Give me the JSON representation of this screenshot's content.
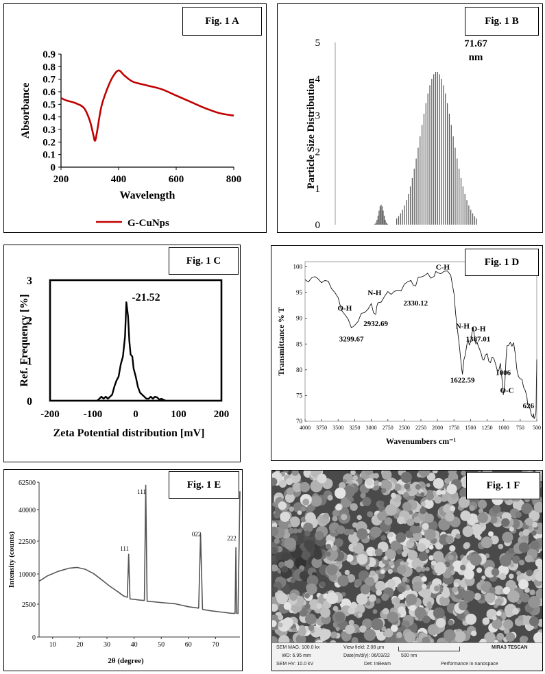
{
  "panels": {
    "A": {
      "label": "Fig. 1 A"
    },
    "B": {
      "label": "Fig. 1 B"
    },
    "C": {
      "label": "Fig. 1 C"
    },
    "D": {
      "label": "Fig. 1 D"
    },
    "E": {
      "label": "Fig. 1 E"
    },
    "F": {
      "label": "Fig. 1 F"
    }
  },
  "chart_data": [
    {
      "panel": "A",
      "type": "line",
      "xlabel": "Wavelength",
      "ylabel": "Absorbance",
      "xlim": [
        200,
        800
      ],
      "ylim": [
        0,
        0.9
      ],
      "xticks": [
        200,
        400,
        600,
        800
      ],
      "yticks": [
        0,
        0.1,
        0.2,
        0.3,
        0.4,
        0.5,
        0.6,
        0.7,
        0.8,
        0.9
      ],
      "ytick_labels": [
        "0",
        "0.1",
        "0.2",
        "0.3",
        "0.4",
        "0.5",
        "0.6",
        "0.7",
        "0.8",
        "0.9"
      ],
      "legend_position": "bottom",
      "series": [
        {
          "name": "G-CuNps",
          "color": "#c00000",
          "x": [
            200,
            220,
            250,
            280,
            300,
            312,
            318,
            325,
            340,
            360,
            380,
            400,
            420,
            450,
            500,
            550,
            600,
            650,
            700,
            750,
            800
          ],
          "y": [
            0.55,
            0.53,
            0.51,
            0.47,
            0.37,
            0.26,
            0.21,
            0.28,
            0.48,
            0.62,
            0.72,
            0.77,
            0.73,
            0.68,
            0.65,
            0.62,
            0.57,
            0.52,
            0.47,
            0.43,
            0.41
          ]
        }
      ]
    },
    {
      "panel": "B",
      "type": "bar",
      "ylabel": "Particle Size Distribution",
      "ylim": [
        0,
        5
      ],
      "yticks": [
        0,
        1,
        2,
        3,
        4,
        5
      ],
      "annotation": {
        "value": "71.67",
        "unit": "nm"
      },
      "peaks": [
        {
          "center": 0.31,
          "height": 0.55,
          "halfwidth": 0.042,
          "bars": 13
        },
        {
          "center": 0.685,
          "height": 4.2,
          "halfwidth": 0.27,
          "bars": 42
        }
      ],
      "bar_color": "#555555"
    },
    {
      "panel": "C",
      "type": "line",
      "xlabel": "Zeta Potential distribution [mV]",
      "ylabel": "Ref. Frequency [%]",
      "xlim": [
        -200,
        200
      ],
      "ylim": [
        0,
        3
      ],
      "xticks": [
        -200,
        -100,
        0,
        100,
        200
      ],
      "yticks": [
        0,
        1,
        2,
        3
      ],
      "annotation": "-21.52",
      "series": [
        {
          "x": [
            -90,
            -85,
            -80,
            -75,
            -70,
            -65,
            -60,
            -55,
            -50,
            -45,
            -40,
            -35,
            -30,
            -25,
            -22,
            -18,
            -15,
            -12,
            -8,
            -5,
            0,
            5,
            10,
            15,
            20,
            25,
            30,
            35,
            40,
            45,
            50,
            55,
            60,
            65,
            70
          ],
          "y": [
            0,
            0.05,
            0.1,
            0.05,
            0.1,
            0.05,
            0.1,
            0.15,
            0.35,
            0.5,
            0.6,
            0.9,
            1.1,
            1.6,
            2.45,
            2.1,
            1.5,
            1.15,
            1.1,
            0.8,
            0.6,
            0.35,
            0.2,
            0.15,
            0.1,
            0.05,
            0.05,
            0.1,
            0.05,
            0.1,
            0.08,
            0.03,
            0.05,
            0.02,
            0
          ]
        }
      ]
    },
    {
      "panel": "D",
      "type": "line",
      "xlabel": "Wavenumbers cm⁻¹",
      "ylabel": "Transmittance % T",
      "xlim": [
        4000,
        500
      ],
      "ylim": [
        70,
        101
      ],
      "xticks": [
        4000,
        3750,
        3500,
        3250,
        3000,
        2750,
        2500,
        2250,
        2000,
        1750,
        1500,
        1250,
        1000,
        750,
        500
      ],
      "yticks": [
        70,
        75,
        80,
        85,
        90,
        95,
        100
      ],
      "annotations": [
        {
          "text": "O-H",
          "x": 3400,
          "y": 91.5
        },
        {
          "text": "N-H",
          "x": 2950,
          "y": 94.5
        },
        {
          "text": "C-H",
          "x": 1920,
          "y": 99.5
        },
        {
          "text": "3299.67",
          "x": 3299.67,
          "y": 85.5
        },
        {
          "text": "2932.69",
          "x": 2932.69,
          "y": 88.5
        },
        {
          "text": "2330.12",
          "x": 2330.12,
          "y": 92.5
        },
        {
          "text": "N-H",
          "x": 1620,
          "y": 88
        },
        {
          "text": "O-H",
          "x": 1380,
          "y": 87.5
        },
        {
          "text": "1387.01",
          "x": 1387.01,
          "y": 85.5
        },
        {
          "text": "1622.59",
          "x": 1622.59,
          "y": 77.5
        },
        {
          "text": "1006",
          "x": 1006,
          "y": 79
        },
        {
          "text": "O-C",
          "x": 950,
          "y": 75.5
        },
        {
          "text": "626",
          "x": 626,
          "y": 72.5
        }
      ],
      "series": [
        {
          "x": [
            4000,
            3900,
            3800,
            3700,
            3600,
            3500,
            3400,
            3300,
            3200,
            3100,
            3000,
            2932,
            2900,
            2800,
            2700,
            2600,
            2500,
            2400,
            2330,
            2250,
            2150,
            2050,
            2000,
            1900,
            1800,
            1750,
            1700,
            1650,
            1622,
            1580,
            1540,
            1500,
            1460,
            1420,
            1387,
            1340,
            1300,
            1250,
            1200,
            1150,
            1100,
            1050,
            1006,
            980,
            950,
            900,
            850,
            800,
            750,
            700,
            650,
            626,
            600,
            560,
            540,
            520,
            510,
            505,
            500
          ],
          "y": [
            97.5,
            98,
            97.5,
            97,
            96,
            94,
            90.5,
            88.5,
            89.5,
            91,
            92.5,
            91,
            93,
            94,
            95,
            95.5,
            96.5,
            97,
            96.5,
            98,
            98.5,
            98.5,
            99,
            99,
            98,
            95,
            88,
            82,
            79.5,
            83,
            86,
            85,
            88.5,
            85,
            84.5,
            83.5,
            82,
            83,
            81,
            82.5,
            80,
            81,
            75.5,
            78,
            84.5,
            85,
            85.5,
            80,
            78,
            77,
            75,
            73,
            72,
            71,
            70.5,
            71,
            73,
            78,
            82
          ]
        }
      ]
    },
    {
      "panel": "E",
      "type": "line",
      "xlabel": "2θ (degree)",
      "ylabel": "Intensity (counts)",
      "xlim": [
        5,
        79
      ],
      "ylim": [
        0,
        62500
      ],
      "xticks": [
        10,
        20,
        30,
        40,
        50,
        60,
        70
      ],
      "yticks": [
        0,
        2500,
        10000,
        22500,
        40000,
        62500
      ],
      "ytick_labels": [
        "0",
        "2500",
        "10000",
        "22500",
        "40000",
        "62500"
      ],
      "peak_labels": [
        {
          "text": "111",
          "x": 38
        },
        {
          "text": "111",
          "x": 44.3
        },
        {
          "text": "022",
          "x": 64.5
        },
        {
          "text": "222",
          "x": 77.5
        }
      ],
      "series": [
        {
          "x": [
            5,
            8,
            12,
            16,
            19,
            22,
            25,
            28,
            31,
            34,
            36,
            37.5,
            38,
            38.5,
            40,
            42,
            43.8,
            44.3,
            44.8,
            47,
            50,
            55,
            60,
            63.8,
            64.5,
            65.2,
            68,
            72,
            76,
            77.2,
            77.5,
            77.8,
            78.3,
            79
          ],
          "y": [
            8200,
            9500,
            11000,
            12200,
            12500,
            11800,
            10200,
            8600,
            7000,
            5600,
            4600,
            4200,
            17500,
            3800,
            3700,
            3500,
            3400,
            60000,
            3200,
            3100,
            2900,
            2600,
            2300,
            2200,
            26500,
            2100,
            2000,
            1900,
            1800,
            1800,
            20000,
            1800,
            1800,
            55000
          ]
        }
      ]
    }
  ],
  "sem": {
    "mag": "SEM MAG: 100.0 kx",
    "wd": "WD: 6.95 mm",
    "hv": "SEM HV: 10.0 kV",
    "view": "View field: 2.08 µm",
    "date": "Date(m/d/y): 06/03/22",
    "det": "Det: InBeam",
    "scale": "500 nm",
    "brand": "MIRA3 TESCAN",
    "perf": "Performance in nanospace"
  }
}
